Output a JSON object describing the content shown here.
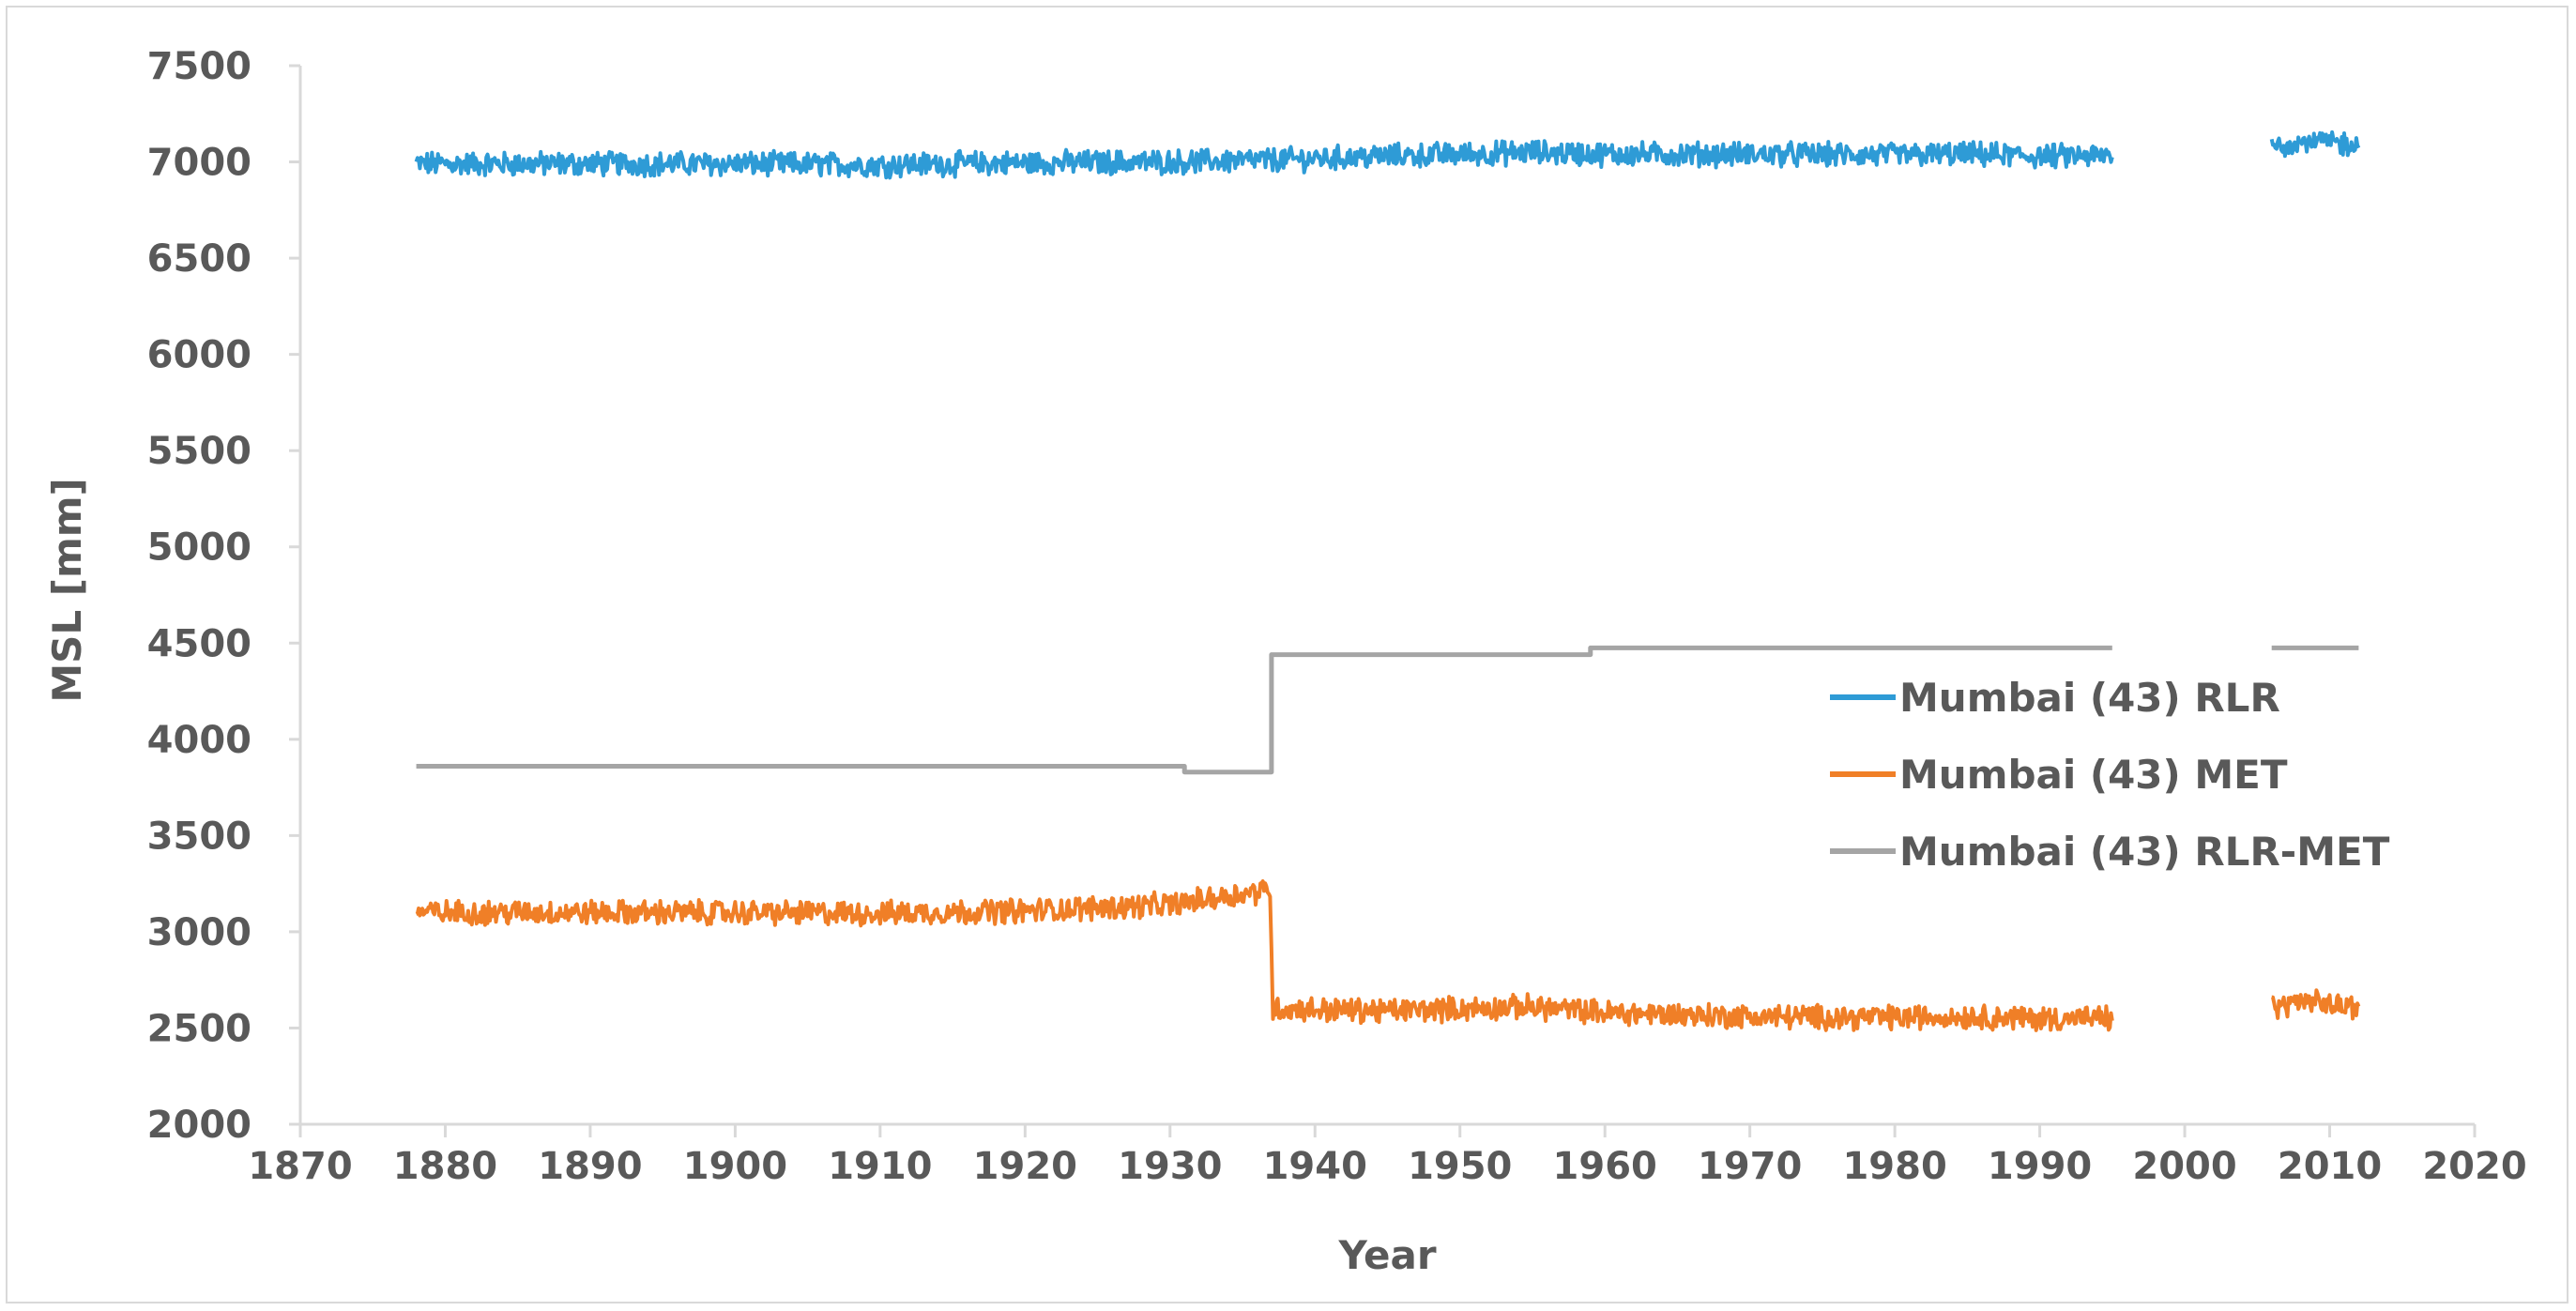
{
  "chart_data": {
    "type": "line",
    "title": "",
    "xlabel": "Year",
    "ylabel": "MSL [mm]",
    "xlim": [
      1870,
      2020
    ],
    "ylim": [
      2000,
      7500
    ],
    "x_ticks": [
      "1870",
      "1880",
      "1890",
      "1900",
      "1910",
      "1920",
      "1930",
      "1940",
      "1950",
      "1960",
      "1970",
      "1980",
      "1990",
      "2000",
      "2010",
      "2020"
    ],
    "y_ticks": [
      "2000",
      "2500",
      "3000",
      "3500",
      "4000",
      "4500",
      "5000",
      "5500",
      "6000",
      "6500",
      "7000",
      "7500"
    ],
    "grid": false,
    "legend_position": "right",
    "colors": {
      "rlr": "#2e9bd6",
      "met": "#f07f27",
      "diff": "#a5a5a5"
    },
    "series": [
      {
        "name": "Mumbai (43) RLR",
        "color": "#2e9bd6",
        "segments": [
          {
            "x": [
              1878,
              1890,
              1900,
              1910,
              1920,
              1930,
              1937,
              1945,
              1955,
              1960,
              1970,
              1980,
              1985,
              1990,
              1995
            ],
            "y": [
              6990,
              6990,
              6990,
              6985,
              6995,
              7000,
              7010,
              7030,
              7050,
              7040,
              7040,
              7035,
              7040,
              7030,
              7030
            ]
          },
          {
            "x": [
              2006,
              2008,
              2010,
              2012
            ],
            "y": [
              7080,
              7110,
              7100,
              7090
            ]
          }
        ],
        "noise_amplitude": 55
      },
      {
        "name": "Mumbai (43) MET",
        "color": "#f07f27",
        "segments": [
          {
            "x": [
              1878,
              1890,
              1900,
              1910,
              1920,
              1930,
              1936.9,
              1937.1,
              1945,
              1955,
              1960,
              1970,
              1980,
              1985,
              1990,
              1995
            ],
            "y": [
              3100,
              3100,
              3100,
              3095,
              3110,
              3140,
              3220,
              2600,
              2590,
              2610,
              2580,
              2560,
              2555,
              2560,
              2550,
              2550
            ]
          },
          {
            "x": [
              2006,
              2008,
              2010,
              2012
            ],
            "y": [
              2600,
              2640,
              2620,
              2610
            ]
          }
        ],
        "noise_amplitude": 55
      },
      {
        "name": "Mumbai (43) RLR-MET",
        "color": "#a5a5a5",
        "segments": [
          {
            "x": [
              1878,
              1931,
              1931,
              1937,
              1937,
              1959,
              1959,
              1995
            ],
            "y": [
              3860,
              3860,
              3830,
              3830,
              4440,
              4440,
              4475,
              4475
            ]
          },
          {
            "x": [
              2006,
              2012
            ],
            "y": [
              4475,
              4475
            ]
          }
        ],
        "noise_amplitude": 0
      }
    ]
  }
}
